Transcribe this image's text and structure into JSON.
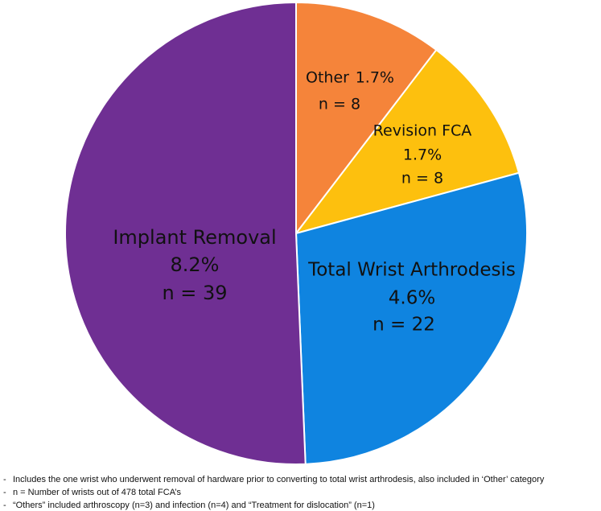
{
  "chart_data": {
    "type": "pie",
    "categories": [
      "Other",
      "Revision FCA",
      "Total Wrist Arthrodesis",
      "Implant Removal"
    ],
    "values": [
      8,
      8,
      22,
      39
    ],
    "value_labels": [
      "n = 8",
      "n = 8",
      "n = 22",
      "n = 39"
    ],
    "percent_labels": [
      "1.7%",
      "1.7%",
      "4.6%",
      "8.2%"
    ],
    "colors": [
      "#f5843a",
      "#fdc00e",
      "#0f84e0",
      "#6f2f93"
    ],
    "notes": [
      "Includes the one wrist who underwent removal of hardware prior to converting to total wrist arthrodesis, also included in ‘Other’ category",
      "n = Number of wrists out of 478 total FCA’s",
      "“Others” included arthroscopy (n=3) and infection (n=4) and “Treatment for dislocation” (n=1)"
    ]
  }
}
